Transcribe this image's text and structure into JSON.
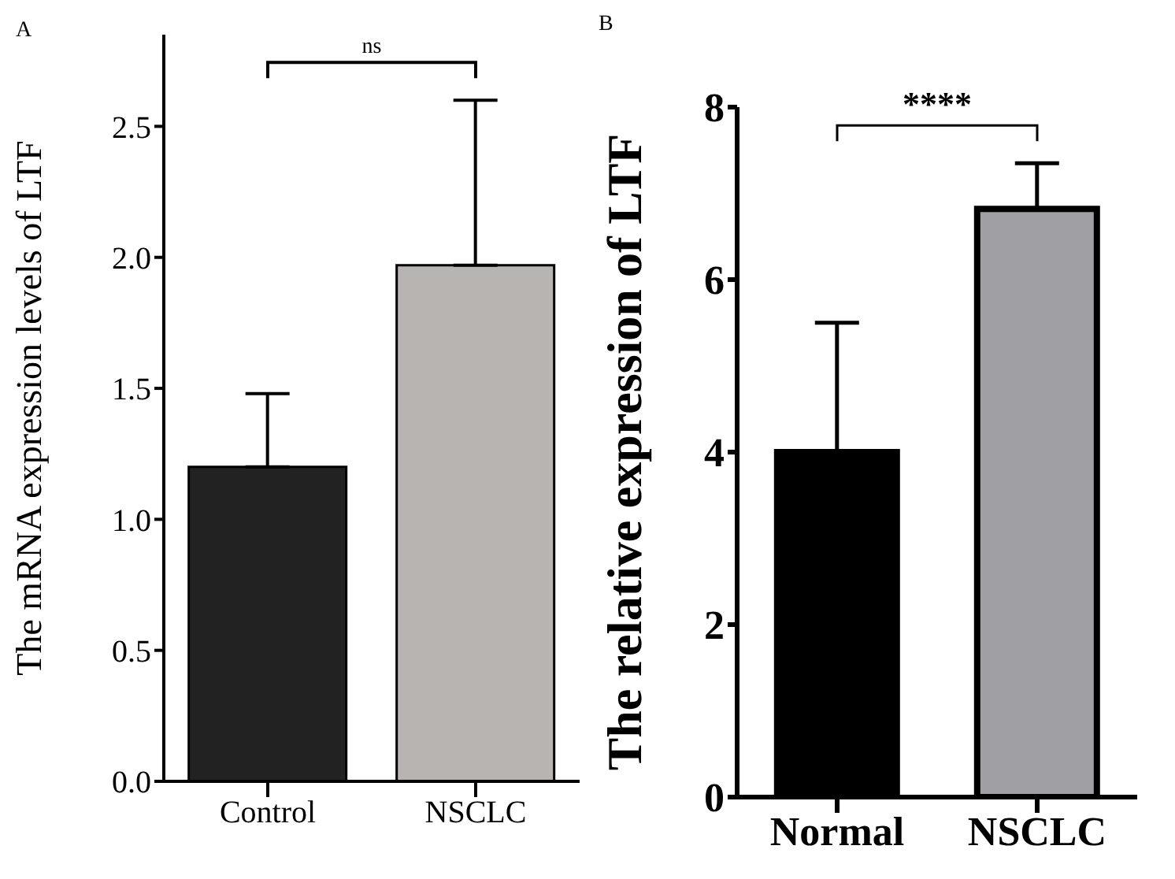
{
  "chart_data": [
    {
      "type": "bar",
      "title": "A",
      "ylabel": "The mRNA expression levels of LTF",
      "categories": [
        "Control",
        "NSCLC"
      ],
      "values": [
        1.2,
        1.97
      ],
      "colors": [
        "#222222",
        "#b8b4b1"
      ],
      "errors": [
        [
          1.2,
          1.48
        ],
        [
          1.97,
          2.6
        ]
      ],
      "ylim": [
        0,
        2.85
      ],
      "yticks": [
        {
          "value": 0,
          "label": "0.0"
        },
        {
          "value": 0.5,
          "label": "0.5"
        },
        {
          "value": 1,
          "label": "1.0"
        },
        {
          "value": 1.5,
          "label": "1.5"
        },
        {
          "value": 2,
          "label": "2.0"
        },
        {
          "value": 2.5,
          "label": "2.5"
        }
      ],
      "grid": false,
      "legend": false,
      "annotations": [
        "ns"
      ]
    },
    {
      "type": "bar",
      "title": "B",
      "ylabel": "The relative expression of LTF",
      "categories": [
        "Normal",
        "NSCLC"
      ],
      "values": [
        4.0,
        6.82
      ],
      "colors": [
        "#000000",
        "#a0a0a4"
      ],
      "errors": [
        [
          4.0,
          5.5
        ],
        [
          6.82,
          7.35
        ]
      ],
      "ylim": [
        0,
        8
      ],
      "yticks": [
        0,
        2,
        4,
        6,
        8
      ],
      "grid": false,
      "legend": false,
      "annotations": [
        "****"
      ]
    }
  ]
}
